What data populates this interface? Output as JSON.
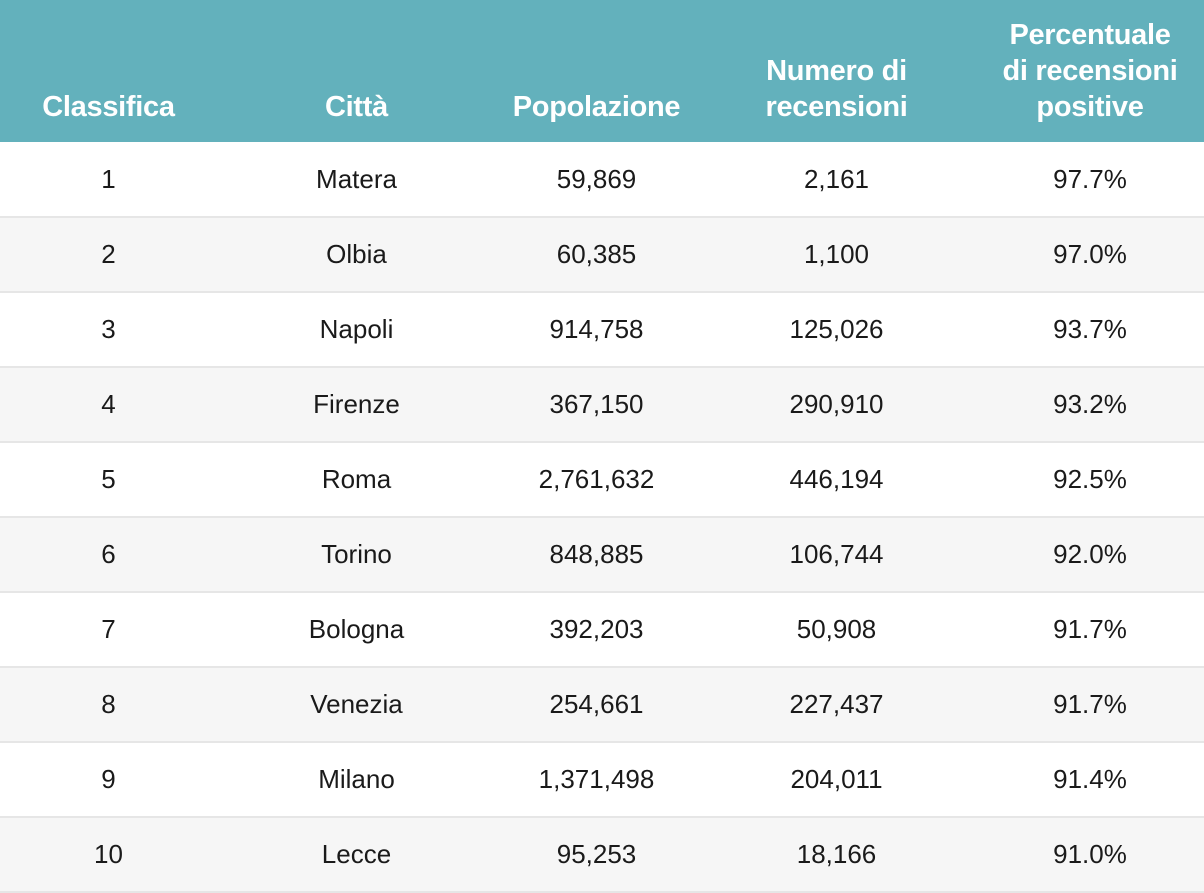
{
  "chart_data": {
    "type": "table",
    "columns": [
      [
        "Classifica"
      ],
      [
        "Città"
      ],
      [
        "Popolazione"
      ],
      [
        "Numero di",
        "recensioni"
      ],
      [
        "Percentuale",
        "di recensioni",
        "positive"
      ]
    ],
    "rows": [
      [
        "1",
        "Matera",
        "59,869",
        "2,161",
        "97.7%"
      ],
      [
        "2",
        "Olbia",
        "60,385",
        "1,100",
        "97.0%"
      ],
      [
        "3",
        "Napoli",
        "914,758",
        "125,026",
        "93.7%"
      ],
      [
        "4",
        "Firenze",
        "367,150",
        "290,910",
        "93.2%"
      ],
      [
        "5",
        "Roma",
        "2,761,632",
        "446,194",
        "92.5%"
      ],
      [
        "6",
        "Torino",
        "848,885",
        "106,744",
        "92.0%"
      ],
      [
        "7",
        "Bologna",
        "392,203",
        "50,908",
        "91.7%"
      ],
      [
        "8",
        "Venezia",
        "254,661",
        "227,437",
        "91.7%"
      ],
      [
        "9",
        "Milano",
        "1,371,498",
        "204,011",
        "91.4%"
      ],
      [
        "10",
        "Lecce",
        "95,253",
        "18,166",
        "91.0%"
      ]
    ]
  },
  "colors": {
    "header_background": "#63b1bc",
    "header_text": "#ffffff",
    "row_odd": "#ffffff",
    "row_even": "#f6f6f6",
    "row_divider": "#e6e6e6",
    "cell_text": "#1a1a1a"
  }
}
